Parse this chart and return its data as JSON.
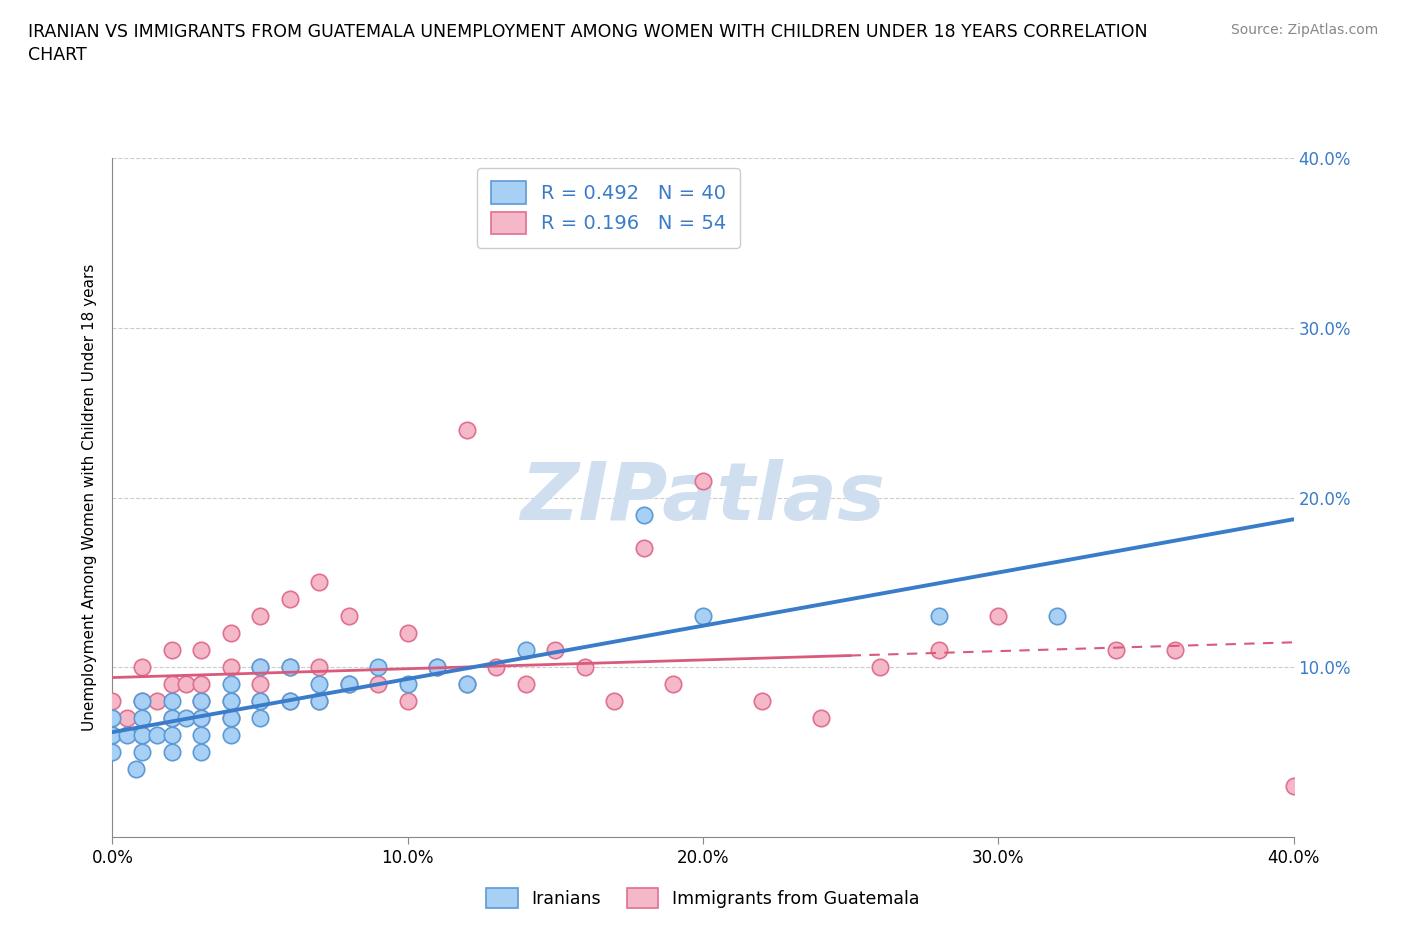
{
  "title_line1": "IRANIAN VS IMMIGRANTS FROM GUATEMALA UNEMPLOYMENT AMONG WOMEN WITH CHILDREN UNDER 18 YEARS CORRELATION",
  "title_line2": "CHART",
  "source": "Source: ZipAtlas.com",
  "ylabel": "Unemployment Among Women with Children Under 18 years",
  "xlim": [
    0.0,
    0.4
  ],
  "ylim": [
    0.0,
    0.4
  ],
  "xtick_vals": [
    0.0,
    0.1,
    0.2,
    0.3,
    0.4
  ],
  "xtick_labels": [
    "0.0%",
    "10.0%",
    "20.0%",
    "30.0%",
    "40.0%"
  ],
  "ytick_vals": [
    0.1,
    0.2,
    0.3,
    0.4
  ],
  "ytick_labels": [
    "10.0%",
    "20.0%",
    "30.0%",
    "40.0%"
  ],
  "color_iranian_fill": "#a8d0f5",
  "color_iranian_edge": "#5b9bd5",
  "color_guatemalan_fill": "#f5b8c8",
  "color_guatemalan_edge": "#e07090",
  "line_color_iranian": "#3a7cc9",
  "line_color_guatemalan": "#d95a7a",
  "watermark_color": "#d0dff0",
  "R_iranian": 0.492,
  "R_guatemalan": 0.196,
  "N_iranian": 40,
  "N_guatemalan": 54,
  "iranian_x": [
    0.0,
    0.0,
    0.0,
    0.005,
    0.008,
    0.01,
    0.01,
    0.01,
    0.01,
    0.015,
    0.02,
    0.02,
    0.02,
    0.02,
    0.025,
    0.03,
    0.03,
    0.03,
    0.03,
    0.04,
    0.04,
    0.04,
    0.04,
    0.05,
    0.05,
    0.05,
    0.06,
    0.06,
    0.07,
    0.07,
    0.08,
    0.09,
    0.1,
    0.11,
    0.12,
    0.14,
    0.18,
    0.2,
    0.28,
    0.32
  ],
  "iranian_y": [
    0.05,
    0.06,
    0.07,
    0.06,
    0.04,
    0.05,
    0.06,
    0.07,
    0.08,
    0.06,
    0.05,
    0.06,
    0.07,
    0.08,
    0.07,
    0.05,
    0.06,
    0.07,
    0.08,
    0.06,
    0.07,
    0.08,
    0.09,
    0.07,
    0.08,
    0.1,
    0.08,
    0.1,
    0.08,
    0.09,
    0.09,
    0.1,
    0.09,
    0.1,
    0.09,
    0.11,
    0.19,
    0.13,
    0.13,
    0.13
  ],
  "guatemalan_x": [
    0.0,
    0.0,
    0.0,
    0.005,
    0.01,
    0.01,
    0.01,
    0.015,
    0.02,
    0.02,
    0.02,
    0.025,
    0.03,
    0.03,
    0.03,
    0.03,
    0.04,
    0.04,
    0.04,
    0.04,
    0.05,
    0.05,
    0.05,
    0.05,
    0.06,
    0.06,
    0.06,
    0.07,
    0.07,
    0.07,
    0.08,
    0.08,
    0.09,
    0.1,
    0.1,
    0.11,
    0.12,
    0.12,
    0.13,
    0.14,
    0.15,
    0.16,
    0.17,
    0.18,
    0.19,
    0.2,
    0.22,
    0.24,
    0.26,
    0.28,
    0.3,
    0.34,
    0.36,
    0.4
  ],
  "guatemalan_y": [
    0.06,
    0.07,
    0.08,
    0.07,
    0.06,
    0.08,
    0.1,
    0.08,
    0.07,
    0.09,
    0.11,
    0.09,
    0.07,
    0.08,
    0.09,
    0.11,
    0.07,
    0.08,
    0.1,
    0.12,
    0.08,
    0.09,
    0.1,
    0.13,
    0.08,
    0.1,
    0.14,
    0.08,
    0.1,
    0.15,
    0.09,
    0.13,
    0.09,
    0.08,
    0.12,
    0.1,
    0.09,
    0.24,
    0.1,
    0.09,
    0.11,
    0.1,
    0.08,
    0.17,
    0.09,
    0.21,
    0.08,
    0.07,
    0.1,
    0.11,
    0.13,
    0.11,
    0.11,
    0.03
  ]
}
